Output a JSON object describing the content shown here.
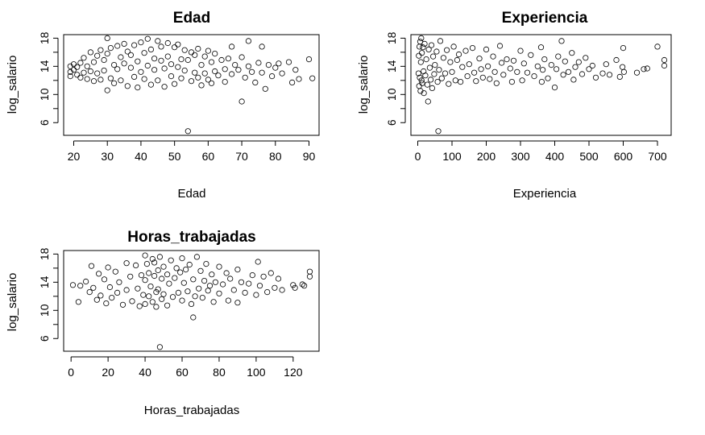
{
  "chart_data": [
    {
      "type": "scatter",
      "title": "Edad",
      "xlabel": "Edad",
      "ylabel": "log_salario",
      "xlim": [
        17,
        93
      ],
      "ylim": [
        4.2,
        18.5
      ],
      "xticks": [
        "20",
        "30",
        "40",
        "50",
        "60",
        "70",
        "80",
        "90"
      ],
      "yticks": [
        "6",
        "10",
        "14",
        "18"
      ],
      "grid": false,
      "points": [
        [
          19,
          13.2
        ],
        [
          19,
          14.0
        ],
        [
          19,
          12.6
        ],
        [
          20,
          13.5
        ],
        [
          20,
          14.3
        ],
        [
          21,
          12.8
        ],
        [
          21,
          13.9
        ],
        [
          22,
          14.5
        ],
        [
          22,
          12.4
        ],
        [
          23,
          13.1
        ],
        [
          23,
          15.2
        ],
        [
          24,
          14.0
        ],
        [
          24,
          12.2
        ],
        [
          25,
          16.0
        ],
        [
          25,
          13.3
        ],
        [
          26,
          14.6
        ],
        [
          26,
          11.9
        ],
        [
          27,
          15.5
        ],
        [
          27,
          13.0
        ],
        [
          28,
          16.3
        ],
        [
          28,
          12.1
        ],
        [
          29,
          14.9
        ],
        [
          29,
          13.4
        ],
        [
          30,
          18.0
        ],
        [
          30,
          10.6
        ],
        [
          30,
          15.8
        ],
        [
          31,
          12.3
        ],
        [
          31,
          16.6
        ],
        [
          32,
          14.2
        ],
        [
          32,
          11.6
        ],
        [
          33,
          16.9
        ],
        [
          33,
          13.6
        ],
        [
          34,
          15.3
        ],
        [
          34,
          12.0
        ],
        [
          35,
          17.2
        ],
        [
          35,
          14.4
        ],
        [
          36,
          11.2
        ],
        [
          36,
          16.1
        ],
        [
          37,
          13.8
        ],
        [
          37,
          15.6
        ],
        [
          38,
          12.5
        ],
        [
          38,
          17.0
        ],
        [
          39,
          14.7
        ],
        [
          39,
          11.0
        ],
        [
          40,
          17.4
        ],
        [
          40,
          13.2
        ],
        [
          41,
          15.9
        ],
        [
          41,
          12.2
        ],
        [
          42,
          17.9
        ],
        [
          42,
          14.1
        ],
        [
          43,
          11.4
        ],
        [
          43,
          16.4
        ],
        [
          44,
          13.5
        ],
        [
          44,
          15.1
        ],
        [
          45,
          17.6
        ],
        [
          45,
          12.0
        ],
        [
          46,
          14.8
        ],
        [
          46,
          16.8
        ],
        [
          47,
          11.1
        ],
        [
          47,
          13.7
        ],
        [
          48,
          17.3
        ],
        [
          48,
          15.4
        ],
        [
          49,
          12.6
        ],
        [
          49,
          14.3
        ],
        [
          50,
          16.7
        ],
        [
          50,
          11.5
        ],
        [
          51,
          13.9
        ],
        [
          51,
          17.1
        ],
        [
          52,
          15.0
        ],
        [
          52,
          12.3
        ],
        [
          53,
          16.3
        ],
        [
          53,
          13.4
        ],
        [
          54,
          4.8
        ],
        [
          54,
          14.9
        ],
        [
          55,
          11.9
        ],
        [
          55,
          16.0
        ],
        [
          56,
          13.1
        ],
        [
          56,
          15.6
        ],
        [
          57,
          12.4
        ],
        [
          57,
          16.5
        ],
        [
          58,
          14.2
        ],
        [
          58,
          11.3
        ],
        [
          59,
          15.4
        ],
        [
          59,
          13.0
        ],
        [
          60,
          16.2
        ],
        [
          60,
          12.1
        ],
        [
          61,
          14.6
        ],
        [
          61,
          11.6
        ],
        [
          62,
          15.8
        ],
        [
          62,
          13.3
        ],
        [
          63,
          12.7
        ],
        [
          64,
          14.9
        ],
        [
          65,
          13.6
        ],
        [
          65,
          11.8
        ],
        [
          66,
          15.1
        ],
        [
          67,
          12.9
        ],
        [
          67,
          16.8
        ],
        [
          68,
          14.2
        ],
        [
          69,
          13.5
        ],
        [
          70,
          9.0
        ],
        [
          70,
          15.3
        ],
        [
          71,
          12.4
        ],
        [
          72,
          14.0
        ],
        [
          72,
          17.6
        ],
        [
          73,
          13.2
        ],
        [
          74,
          11.7
        ],
        [
          75,
          14.5
        ],
        [
          76,
          13.1
        ],
        [
          76,
          16.8
        ],
        [
          77,
          10.8
        ],
        [
          78,
          14.2
        ],
        [
          79,
          12.6
        ],
        [
          80,
          13.8
        ],
        [
          81,
          14.4
        ],
        [
          82,
          13.0
        ],
        [
          84,
          14.6
        ],
        [
          85,
          11.7
        ],
        [
          86,
          13.5
        ],
        [
          87,
          12.2
        ],
        [
          90,
          15.0
        ],
        [
          91,
          12.3
        ]
      ]
    },
    {
      "type": "scatter",
      "title": "Experiencia",
      "xlabel": "Experiencia",
      "ylabel": "log_salario",
      "xlim": [
        -20,
        740
      ],
      "ylim": [
        4.2,
        18.5
      ],
      "xticks": [
        "0",
        "100",
        "200",
        "300",
        "400",
        "500",
        "600",
        "700"
      ],
      "yticks": [
        "6",
        "10",
        "14",
        "18"
      ],
      "grid": false,
      "points": [
        [
          2,
          13.0
        ],
        [
          3,
          15.5
        ],
        [
          4,
          11.2
        ],
        [
          5,
          16.8
        ],
        [
          6,
          12.4
        ],
        [
          7,
          17.5
        ],
        [
          8,
          10.5
        ],
        [
          9,
          14.6
        ],
        [
          10,
          18.0
        ],
        [
          11,
          12.0
        ],
        [
          12,
          15.9
        ],
        [
          13,
          11.6
        ],
        [
          15,
          16.7
        ],
        [
          17,
          13.3
        ],
        [
          18,
          10.2
        ],
        [
          20,
          17.2
        ],
        [
          22,
          12.7
        ],
        [
          25,
          15.0
        ],
        [
          28,
          11.4
        ],
        [
          30,
          9.0
        ],
        [
          32,
          16.4
        ],
        [
          35,
          13.8
        ],
        [
          38,
          12.1
        ],
        [
          40,
          17.0
        ],
        [
          42,
          10.9
        ],
        [
          45,
          15.4
        ],
        [
          48,
          12.9
        ],
        [
          50,
          14.2
        ],
        [
          55,
          16.1
        ],
        [
          58,
          11.8
        ],
        [
          60,
          4.8
        ],
        [
          62,
          13.5
        ],
        [
          66,
          17.6
        ],
        [
          70,
          12.3
        ],
        [
          75,
          15.2
        ],
        [
          80,
          13.0
        ],
        [
          85,
          16.3
        ],
        [
          90,
          11.5
        ],
        [
          95,
          14.6
        ],
        [
          100,
          13.2
        ],
        [
          105,
          16.8
        ],
        [
          110,
          12.0
        ],
        [
          115,
          14.9
        ],
        [
          120,
          15.7
        ],
        [
          125,
          11.8
        ],
        [
          130,
          13.9
        ],
        [
          140,
          16.2
        ],
        [
          145,
          12.6
        ],
        [
          150,
          14.3
        ],
        [
          160,
          16.6
        ],
        [
          165,
          13.1
        ],
        [
          170,
          11.9
        ],
        [
          180,
          15.1
        ],
        [
          185,
          13.6
        ],
        [
          190,
          12.4
        ],
        [
          200,
          16.4
        ],
        [
          205,
          14.0
        ],
        [
          210,
          12.2
        ],
        [
          220,
          15.4
        ],
        [
          225,
          13.2
        ],
        [
          230,
          11.6
        ],
        [
          240,
          16.9
        ],
        [
          245,
          14.5
        ],
        [
          250,
          12.8
        ],
        [
          260,
          15.0
        ],
        [
          270,
          13.7
        ],
        [
          275,
          11.8
        ],
        [
          280,
          14.8
        ],
        [
          290,
          13.2
        ],
        [
          300,
          16.2
        ],
        [
          305,
          12.0
        ],
        [
          310,
          14.4
        ],
        [
          320,
          13.1
        ],
        [
          330,
          15.6
        ],
        [
          340,
          12.6
        ],
        [
          350,
          14.0
        ],
        [
          360,
          16.7
        ],
        [
          362,
          11.8
        ],
        [
          365,
          13.5
        ],
        [
          370,
          15.0
        ],
        [
          380,
          12.3
        ],
        [
          390,
          14.2
        ],
        [
          400,
          11.0
        ],
        [
          405,
          13.6
        ],
        [
          410,
          15.4
        ],
        [
          420,
          17.6
        ],
        [
          425,
          12.8
        ],
        [
          430,
          14.7
        ],
        [
          440,
          13.2
        ],
        [
          450,
          15.9
        ],
        [
          455,
          12.1
        ],
        [
          460,
          13.9
        ],
        [
          470,
          14.6
        ],
        [
          480,
          12.9
        ],
        [
          490,
          15.2
        ],
        [
          500,
          13.6
        ],
        [
          510,
          14.1
        ],
        [
          520,
          12.4
        ],
        [
          540,
          13.0
        ],
        [
          550,
          14.3
        ],
        [
          560,
          12.8
        ],
        [
          580,
          14.9
        ],
        [
          590,
          12.5
        ],
        [
          598,
          13.9
        ],
        [
          600,
          16.6
        ],
        [
          602,
          13.2
        ],
        [
          640,
          13.1
        ],
        [
          660,
          13.6
        ],
        [
          670,
          13.7
        ],
        [
          700,
          16.8
        ],
        [
          720,
          14.9
        ],
        [
          720,
          14.1
        ]
      ]
    },
    {
      "type": "scatter",
      "title": "Horas_trabajadas",
      "xlabel": "Horas_trabajadas",
      "ylabel": "log_salario",
      "xlim": [
        -4,
        134
      ],
      "ylim": [
        4.2,
        18.5
      ],
      "xticks": [
        "0",
        "20",
        "40",
        "60",
        "80",
        "100",
        "120"
      ],
      "yticks": [
        "6",
        "10",
        "14",
        "18"
      ],
      "grid": false,
      "points": [
        [
          1,
          13.6
        ],
        [
          4,
          11.2
        ],
        [
          5,
          13.5
        ],
        [
          8,
          14.1
        ],
        [
          10,
          12.6
        ],
        [
          11,
          16.3
        ],
        [
          12,
          13.2
        ],
        [
          14,
          11.5
        ],
        [
          15,
          15.2
        ],
        [
          16,
          12.1
        ],
        [
          18,
          14.4
        ],
        [
          19,
          11.0
        ],
        [
          20,
          16.1
        ],
        [
          21,
          13.3
        ],
        [
          22,
          11.8
        ],
        [
          24,
          15.5
        ],
        [
          25,
          12.5
        ],
        [
          26,
          14.0
        ],
        [
          28,
          10.8
        ],
        [
          30,
          16.7
        ],
        [
          30,
          12.9
        ],
        [
          32,
          14.8
        ],
        [
          33,
          11.3
        ],
        [
          35,
          16.4
        ],
        [
          36,
          13.1
        ],
        [
          37,
          10.6
        ],
        [
          38,
          15.0
        ],
        [
          39,
          12.2
        ],
        [
          40,
          17.8
        ],
        [
          40,
          14.3
        ],
        [
          40,
          10.9
        ],
        [
          41,
          16.6
        ],
        [
          42,
          12.0
        ],
        [
          42,
          15.3
        ],
        [
          43,
          13.4
        ],
        [
          44,
          17.3
        ],
        [
          44,
          11.2
        ],
        [
          45,
          14.9
        ],
        [
          45,
          16.8
        ],
        [
          46,
          12.6
        ],
        [
          46,
          10.5
        ],
        [
          47,
          15.7
        ],
        [
          47,
          13.0
        ],
        [
          48,
          4.8
        ],
        [
          48,
          17.6
        ],
        [
          49,
          11.6
        ],
        [
          49,
          14.5
        ],
        [
          50,
          16.2
        ],
        [
          50,
          12.3
        ],
        [
          52,
          15.1
        ],
        [
          52,
          10.7
        ],
        [
          53,
          13.8
        ],
        [
          54,
          17.1
        ],
        [
          55,
          11.9
        ],
        [
          56,
          14.6
        ],
        [
          57,
          16.0
        ],
        [
          58,
          12.5
        ],
        [
          59,
          15.4
        ],
        [
          60,
          17.4
        ],
        [
          60,
          11.4
        ],
        [
          61,
          13.9
        ],
        [
          62,
          15.8
        ],
        [
          63,
          12.7
        ],
        [
          64,
          16.5
        ],
        [
          65,
          10.9
        ],
        [
          66,
          9.0
        ],
        [
          66,
          14.4
        ],
        [
          67,
          12.0
        ],
        [
          68,
          17.6
        ],
        [
          69,
          13.1
        ],
        [
          70,
          15.6
        ],
        [
          71,
          11.8
        ],
        [
          72,
          14.2
        ],
        [
          73,
          16.6
        ],
        [
          74,
          12.8
        ],
        [
          75,
          13.5
        ],
        [
          76,
          15.1
        ],
        [
          77,
          11.2
        ],
        [
          78,
          14.0
        ],
        [
          80,
          16.2
        ],
        [
          80,
          12.4
        ],
        [
          82,
          13.7
        ],
        [
          84,
          15.3
        ],
        [
          85,
          11.4
        ],
        [
          86,
          14.5
        ],
        [
          88,
          12.9
        ],
        [
          90,
          15.8
        ],
        [
          90,
          11.1
        ],
        [
          92,
          14.0
        ],
        [
          94,
          12.5
        ],
        [
          96,
          13.8
        ],
        [
          98,
          15.0
        ],
        [
          100,
          12.2
        ],
        [
          101,
          16.9
        ],
        [
          102,
          13.5
        ],
        [
          104,
          14.8
        ],
        [
          106,
          12.6
        ],
        [
          108,
          15.3
        ],
        [
          110,
          13.2
        ],
        [
          112,
          14.5
        ],
        [
          114,
          12.9
        ],
        [
          120,
          13.6
        ],
        [
          121,
          13.2
        ],
        [
          125,
          13.7
        ],
        [
          126,
          13.5
        ],
        [
          129,
          14.8
        ],
        [
          129,
          15.5
        ]
      ]
    }
  ]
}
